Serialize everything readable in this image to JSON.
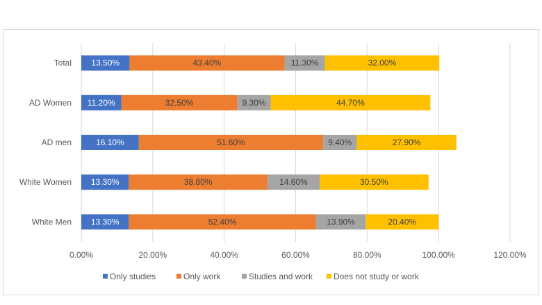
{
  "chart_data": {
    "type": "bar",
    "orientation": "horizontal",
    "stacked": true,
    "categories": [
      "Total",
      "AD Women",
      "AD men",
      "White Women",
      "White Men"
    ],
    "series": [
      {
        "name": "Only studies",
        "color": "#4472C4",
        "values": [
          13.5,
          11.2,
          16.1,
          13.3,
          13.3
        ],
        "labels": [
          "13.50%",
          "11.20%",
          "16.10%",
          "13.30%",
          "13.30%"
        ],
        "label_color": "#ffffff"
      },
      {
        "name": "Only work",
        "color": "#ED7D31",
        "values": [
          43.4,
          32.5,
          51.6,
          38.8,
          52.4
        ],
        "labels": [
          "43.40%",
          "32.50%",
          "51.60%",
          "38.80%",
          "52.40%"
        ],
        "label_color": "#404040"
      },
      {
        "name": "Studies and work",
        "color": "#A5A5A5",
        "values": [
          11.3,
          9.3,
          9.4,
          14.6,
          13.9
        ],
        "labels": [
          "11.30%",
          "9.30%",
          "9.40%",
          "14.60%",
          "13.90%"
        ],
        "label_color": "#404040"
      },
      {
        "name": "Does not study or work",
        "color": "#FFC000",
        "values": [
          32.0,
          44.7,
          27.9,
          30.5,
          20.4
        ],
        "labels": [
          "32.00%",
          "44.70%",
          "27.90%",
          "30.50%",
          "20.40%"
        ],
        "label_color": "#404040"
      }
    ],
    "xlim": [
      0,
      120
    ],
    "xticks": [
      "0.00%",
      "20.00%",
      "40.00%",
      "60.00%",
      "80.00%",
      "100.00%",
      "120.00%"
    ],
    "grid": "vertical",
    "legend": "bottom",
    "title": "",
    "xlabel": "",
    "ylabel": ""
  }
}
